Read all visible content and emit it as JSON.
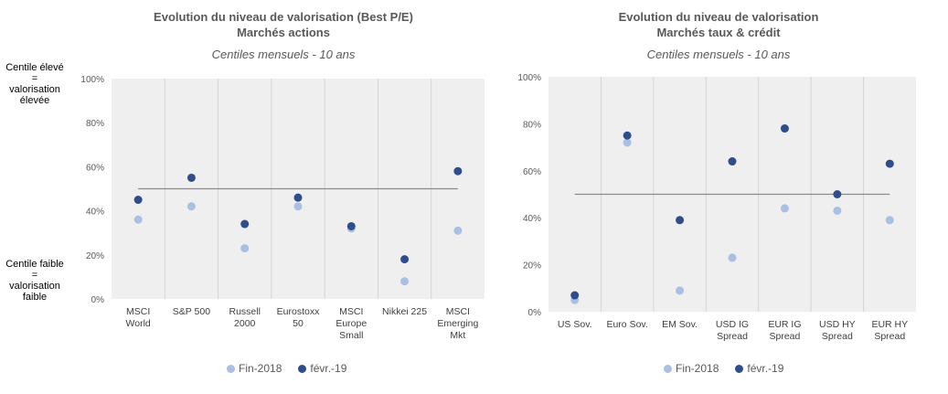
{
  "left": {
    "title_line1": "Evolution du niveau de valorisation (Best P/E)",
    "title_line2": "Marchés actions",
    "subtitle": "Centiles mensuels - 10 ans",
    "note_high": [
      "Centile élevé",
      "=",
      "valorisation",
      "élevée"
    ],
    "note_low": [
      "Centile faible",
      "=",
      "valorisation",
      "faible"
    ]
  },
  "right": {
    "title_line1": "Evolution du niveau de valorisation",
    "title_line2": "Marchés taux & crédit",
    "subtitle": "Centiles mensuels - 10 ans"
  },
  "colors": {
    "fin2018": "#a9bfe3",
    "fevr19": "#2e4d8a",
    "refline": "#8c8c8c",
    "plotbg": "#efefef",
    "grid": "#d4d4d4"
  },
  "chart_data": [
    {
      "type": "scatter",
      "title": "Evolution du niveau de valorisation (Best P/E) Marchés actions",
      "subtitle": "Centiles mensuels - 10 ans",
      "categories": [
        [
          "MSCI",
          "World"
        ],
        [
          "S&P 500"
        ],
        [
          "Russell",
          "2000"
        ],
        [
          "Eurostoxx",
          "50"
        ],
        [
          "MSCI",
          "Europe",
          "Small"
        ],
        [
          "Nikkei 225"
        ],
        [
          "MSCI",
          "Emerging",
          "Mkt"
        ]
      ],
      "series": [
        {
          "name": "Fin-2018",
          "values": [
            36,
            42,
            23,
            42,
            32,
            8,
            31
          ]
        },
        {
          "name": "févr.-19",
          "values": [
            45,
            55,
            34,
            46,
            33,
            18,
            58
          ]
        }
      ],
      "reference_line": 50,
      "ylim": [
        0,
        100
      ],
      "yticks": [
        "0%",
        "20%",
        "40%",
        "60%",
        "80%",
        "100%"
      ],
      "legend": "bottom"
    },
    {
      "type": "scatter",
      "title": "Evolution du niveau de valorisation Marchés taux & crédit",
      "subtitle": "Centiles mensuels - 10 ans",
      "categories": [
        [
          "US Sov."
        ],
        [
          "Euro Sov."
        ],
        [
          "EM Sov."
        ],
        [
          "USD IG",
          "Spread"
        ],
        [
          "EUR IG",
          "Spread"
        ],
        [
          "USD HY",
          "Spread"
        ],
        [
          "EUR HY",
          "Spread"
        ]
      ],
      "series": [
        {
          "name": "Fin-2018",
          "values": [
            5,
            72,
            9,
            23,
            44,
            43,
            39
          ]
        },
        {
          "name": "févr.-19",
          "values": [
            7,
            75,
            39,
            64,
            78,
            50,
            63
          ]
        }
      ],
      "reference_line": 50,
      "ylim": [
        0,
        100
      ],
      "yticks": [
        "0%",
        "20%",
        "40%",
        "60%",
        "80%",
        "100%"
      ],
      "legend": "bottom"
    }
  ]
}
